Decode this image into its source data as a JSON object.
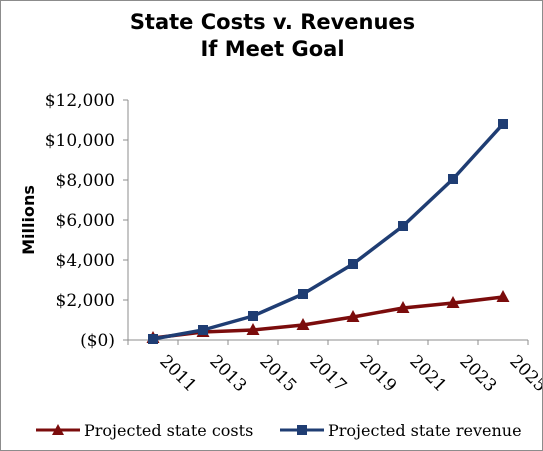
{
  "chart_data": {
    "type": "line",
    "title_lines": [
      "State Costs v. Revenues",
      "If Meet Goal"
    ],
    "xlabel": "",
    "ylabel": "Millions",
    "categories": [
      "2011",
      "2013",
      "2015",
      "2017",
      "2019",
      "2021",
      "2023",
      "2025"
    ],
    "ylim": [
      0,
      12000
    ],
    "yticks": [
      0,
      2000,
      4000,
      6000,
      8000,
      10000,
      12000
    ],
    "ytick_labels": [
      "($0)",
      "$2,000",
      "$4,000",
      "$6,000",
      "$8,000",
      "$10,000",
      "$12,000"
    ],
    "grid": false,
    "legend_position": "bottom",
    "series": [
      {
        "name": "Projected state costs",
        "marker": "triangle",
        "color": "#7b0c0c",
        "values": [
          100,
          400,
          500,
          750,
          1150,
          1600,
          1850,
          2150
        ]
      },
      {
        "name": "Projected state revenue",
        "marker": "square",
        "color": "#1f3d73",
        "values": [
          50,
          500,
          1200,
          2300,
          3800,
          5700,
          8050,
          10800
        ]
      }
    ]
  }
}
